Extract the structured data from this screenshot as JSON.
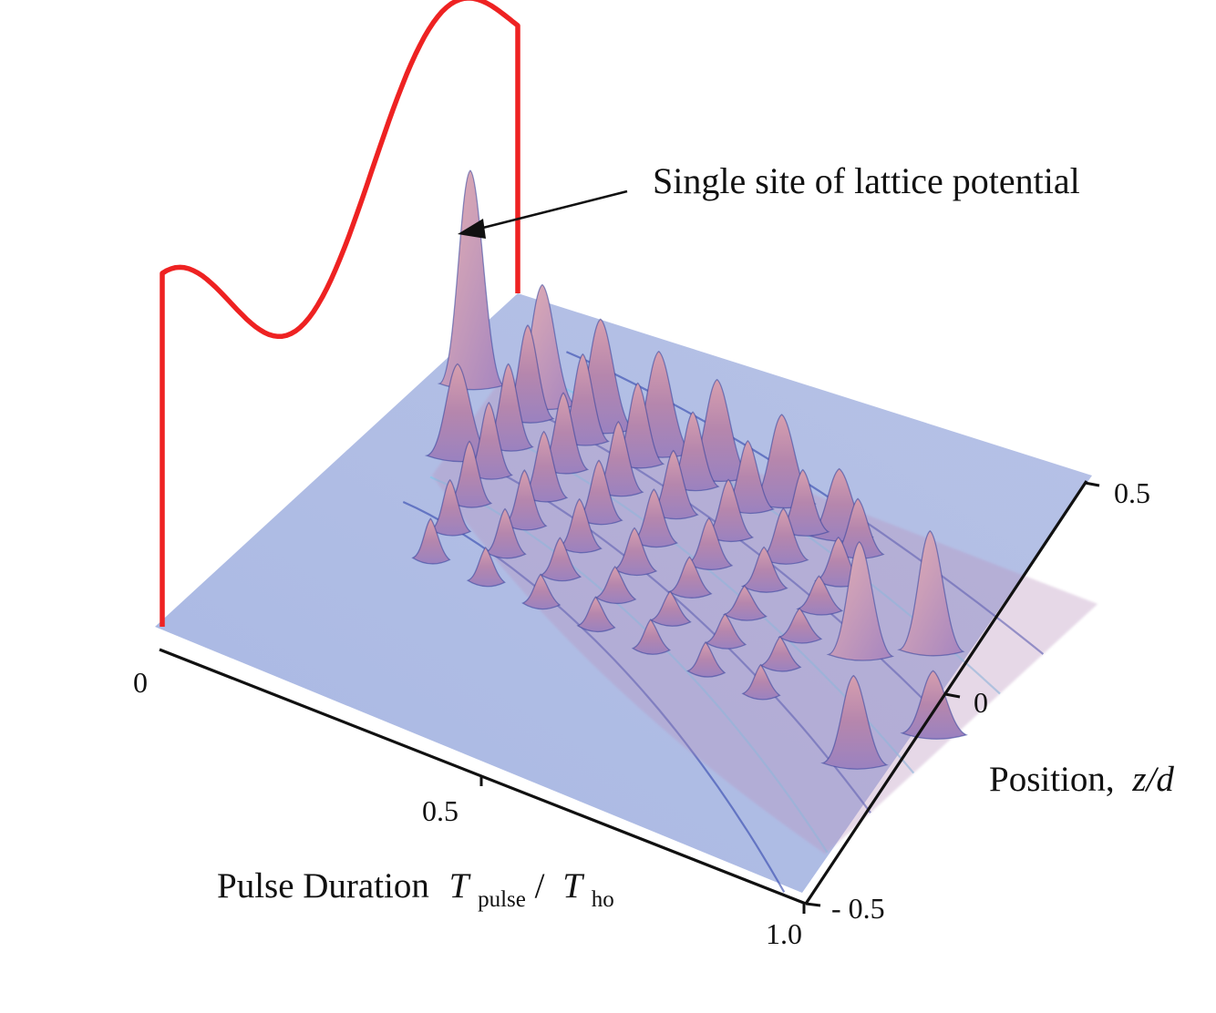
{
  "chart_data": {
    "type": "surface",
    "annotation": "Single site of lattice potential",
    "x_axis": {
      "label_main": "Pulse Duration",
      "label_T1": "T",
      "label_T1_sub": "pulse",
      "label_slash": "/",
      "label_T2": "T",
      "label_T2_sub": "ho",
      "ticks": [
        {
          "value": 0,
          "label": "0"
        },
        {
          "value": 0.5,
          "label": "0.5"
        },
        {
          "value": 1.0,
          "label": "1.0"
        }
      ],
      "range": [
        0,
        1.0
      ]
    },
    "y_axis": {
      "label_main": "Position,",
      "label_var": "z/d",
      "ticks": [
        {
          "value": -0.5,
          "label": "- 0.5"
        },
        {
          "value": 0,
          "label": "0"
        },
        {
          "value": 0.5,
          "label": "0.5"
        }
      ],
      "range": [
        -0.5,
        0.5
      ]
    },
    "surface_peaks": [
      {
        "t": 0.05,
        "z": 0.28,
        "h": 1.0
      },
      {
        "t": 0.12,
        "z": 0.12,
        "h": 0.42
      },
      {
        "t": 0.15,
        "z": 0.3,
        "h": 0.55
      },
      {
        "t": 0.24,
        "z": 0.3,
        "h": 0.5
      },
      {
        "t": 0.33,
        "z": 0.3,
        "h": 0.46
      },
      {
        "t": 0.42,
        "z": 0.3,
        "h": 0.44
      },
      {
        "t": 0.52,
        "z": 0.3,
        "h": 0.4
      },
      {
        "t": 0.62,
        "z": 0.28,
        "h": 0.3
      },
      {
        "t": 0.78,
        "z": 0.05,
        "h": 0.52
      },
      {
        "t": 0.85,
        "z": 0.12,
        "h": 0.55
      },
      {
        "t": 0.9,
        "z": -0.18,
        "h": 0.4
      },
      {
        "t": 0.95,
        "z": -0.05,
        "h": 0.28
      }
    ],
    "colors": {
      "surface_base": "#a8b6e0",
      "surface_peak": "#b88aa8",
      "surface_ridge": "#2b3fa0",
      "potential_curve": "#ee2222",
      "axis": "#111111"
    }
  }
}
